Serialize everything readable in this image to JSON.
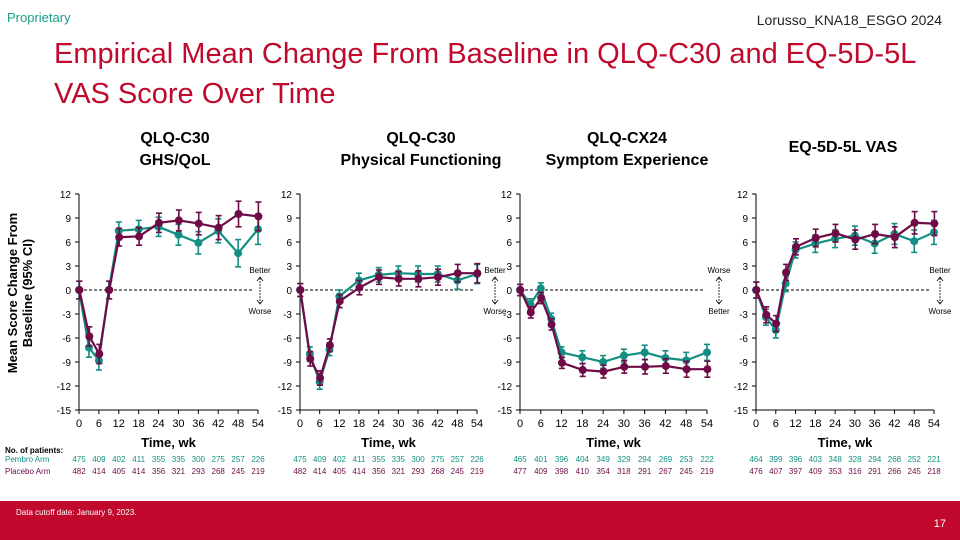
{
  "header": {
    "proprietary": "Proprietary",
    "reference": "Lorusso_KNA18_ESGO 2024",
    "title": "Empirical Mean Change From Baseline in QLQ-C30 and EQ-5D-5L VAS Score Over Time"
  },
  "shared": {
    "ylabel": "Mean Score Change From\nBaseline (95% CI)",
    "patients_header": "No. of patients:",
    "arm_labels": [
      "Pembro Arm",
      "Placebo Arm"
    ]
  },
  "colors": {
    "pembro": "#138e82",
    "placebo": "#6e0b47",
    "title": "#c0092d",
    "footer": "#c0092d"
  },
  "footer": {
    "cutoff": "Data cutoff date: January 9, 2023.",
    "page": "17"
  },
  "chart_data": [
    {
      "type": "line",
      "title": "QLQ-C30\nGHS/QoL",
      "xlabel": "Time, wk",
      "ylabel": "Mean Score Change From Baseline (95% CI)",
      "x": [
        0,
        3,
        6,
        9,
        12,
        18,
        24,
        30,
        36,
        42,
        48,
        54
      ],
      "x_ticks": [
        0,
        6,
        12,
        18,
        24,
        30,
        36,
        42,
        48,
        54
      ],
      "ylim": [
        -15,
        12
      ],
      "y_ticks": [
        12,
        9,
        6,
        3,
        0,
        -3,
        -6,
        -9,
        -12,
        -15
      ],
      "direction_labels": {
        "top": "Better",
        "bottom": "Worse"
      },
      "series": [
        {
          "name": "Pembro Arm",
          "values": [
            0,
            -7.2,
            -8.8,
            0,
            7.4,
            7.6,
            7.9,
            6.9,
            5.9,
            7.4,
            4.6,
            7.6
          ],
          "ci": [
            1.1,
            1.2,
            1.2,
            1.1,
            1.1,
            1.1,
            1.2,
            1.3,
            1.4,
            1.5,
            1.7,
            1.9
          ]
        },
        {
          "name": "Placebo Arm",
          "values": [
            0,
            -5.8,
            -8.0,
            0,
            6.6,
            6.7,
            8.4,
            8.7,
            8.3,
            7.8,
            9.5,
            9.2
          ],
          "ci": [
            1.1,
            1.2,
            1.2,
            1.1,
            1.1,
            1.1,
            1.2,
            1.3,
            1.4,
            1.5,
            1.6,
            1.8
          ]
        }
      ],
      "patients": [
        [
          "475",
          "409",
          "402",
          "411",
          "355",
          "335",
          "300",
          "275",
          "257",
          "226"
        ],
        [
          "482",
          "414",
          "405",
          "414",
          "356",
          "321",
          "293",
          "268",
          "245",
          "219"
        ]
      ]
    },
    {
      "type": "line",
      "title": "QLQ-C30\nPhysical Functioning",
      "xlabel": "Time, wk",
      "x": [
        0,
        3,
        6,
        9,
        12,
        18,
        24,
        30,
        36,
        42,
        48,
        54
      ],
      "x_ticks": [
        0,
        6,
        12,
        18,
        24,
        30,
        36,
        42,
        48,
        54
      ],
      "ylim": [
        -15,
        12
      ],
      "y_ticks": [
        12,
        9,
        6,
        3,
        0,
        -3,
        -6,
        -9,
        -12,
        -15
      ],
      "direction_labels": {
        "top": "Better",
        "bottom": "Worse"
      },
      "series": [
        {
          "name": "Pembro Arm",
          "values": [
            0,
            -8.0,
            -11.5,
            -7.4,
            -0.8,
            1.2,
            1.9,
            2.1,
            2.0,
            2.0,
            1.2,
            2.0
          ],
          "ci": [
            0.8,
            0.9,
            0.9,
            0.8,
            0.8,
            0.9,
            0.9,
            0.9,
            1.0,
            1.0,
            1.1,
            1.2
          ]
        },
        {
          "name": "Placebo Arm",
          "values": [
            0,
            -8.6,
            -11.0,
            -6.9,
            -1.4,
            0.3,
            1.6,
            1.4,
            1.4,
            1.6,
            2.1,
            2.1
          ],
          "ci": [
            0.8,
            0.9,
            0.9,
            0.8,
            0.8,
            0.9,
            0.9,
            0.9,
            1.0,
            1.0,
            1.1,
            1.2
          ]
        }
      ],
      "patients": [
        [
          "475",
          "409",
          "402",
          "411",
          "355",
          "335",
          "300",
          "275",
          "257",
          "226"
        ],
        [
          "482",
          "414",
          "405",
          "414",
          "356",
          "321",
          "293",
          "268",
          "245",
          "219"
        ]
      ]
    },
    {
      "type": "line",
      "title": "QLQ-CX24\nSymptom Experience",
      "xlabel": "Time, wk",
      "x": [
        0,
        3,
        6,
        9,
        12,
        18,
        24,
        30,
        36,
        42,
        48,
        54
      ],
      "x_ticks": [
        0,
        6,
        12,
        18,
        24,
        30,
        36,
        42,
        48,
        54
      ],
      "ylim": [
        -15,
        12
      ],
      "y_ticks": [
        12,
        9,
        6,
        3,
        0,
        -3,
        -6,
        -9,
        -12,
        -15
      ],
      "direction_labels": {
        "top": "Worse",
        "bottom": "Better"
      },
      "series": [
        {
          "name": "Pembro Arm",
          "values": [
            0,
            -1.8,
            0.2,
            -3.6,
            -7.8,
            -8.4,
            -9.0,
            -8.2,
            -7.8,
            -8.5,
            -8.8,
            -7.8
          ],
          "ci": [
            0.7,
            0.7,
            0.7,
            0.7,
            0.7,
            0.8,
            0.8,
            0.8,
            0.9,
            0.9,
            1.0,
            1.0
          ]
        },
        {
          "name": "Placebo Arm",
          "values": [
            0,
            -2.8,
            -1.0,
            -4.3,
            -9.1,
            -10.0,
            -10.2,
            -9.6,
            -9.6,
            -9.5,
            -9.9,
            -9.9
          ],
          "ci": [
            0.7,
            0.7,
            0.7,
            0.7,
            0.7,
            0.8,
            0.8,
            0.8,
            0.9,
            0.9,
            1.0,
            1.0
          ]
        }
      ],
      "patients": [
        [
          "465",
          "401",
          "396",
          "404",
          "349",
          "329",
          "294",
          "269",
          "253",
          "222"
        ],
        [
          "477",
          "409",
          "398",
          "410",
          "354",
          "318",
          "291",
          "267",
          "245",
          "219"
        ]
      ]
    },
    {
      "type": "line",
      "title": "EQ-5D-5L VAS",
      "xlabel": "Time, wk",
      "x": [
        0,
        3,
        6,
        9,
        12,
        18,
        24,
        30,
        36,
        42,
        48,
        54
      ],
      "x_ticks": [
        0,
        6,
        12,
        18,
        24,
        30,
        36,
        42,
        48,
        54
      ],
      "ylim": [
        -15,
        12
      ],
      "y_ticks": [
        12,
        9,
        6,
        3,
        0,
        -3,
        -6,
        -9,
        -12,
        -15
      ],
      "direction_labels": {
        "top": "Better",
        "bottom": "Worse"
      },
      "series": [
        {
          "name": "Pembro Arm",
          "values": [
            0,
            -3.4,
            -5.0,
            0.8,
            5.0,
            5.8,
            6.4,
            6.8,
            5.8,
            7.0,
            6.1,
            7.2
          ],
          "ci": [
            1.0,
            1.0,
            1.0,
            1.0,
            1.0,
            1.1,
            1.1,
            1.2,
            1.2,
            1.3,
            1.4,
            1.5
          ]
        },
        {
          "name": "Placebo Arm",
          "values": [
            0,
            -3.1,
            -4.2,
            2.2,
            5.4,
            6.5,
            7.1,
            6.3,
            7.0,
            6.6,
            8.4,
            8.3
          ],
          "ci": [
            1.0,
            1.0,
            1.0,
            1.0,
            1.0,
            1.1,
            1.1,
            1.2,
            1.2,
            1.3,
            1.4,
            1.5
          ]
        }
      ],
      "patients": [
        [
          "464",
          "399",
          "396",
          "403",
          "348",
          "328",
          "294",
          "268",
          "252",
          "221"
        ],
        [
          "476",
          "407",
          "397",
          "409",
          "353",
          "316",
          "291",
          "266",
          "245",
          "218"
        ]
      ]
    }
  ]
}
